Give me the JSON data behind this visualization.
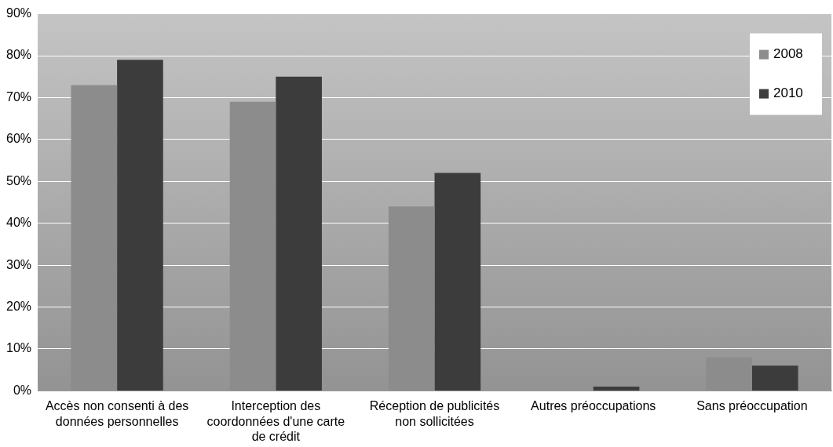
{
  "chart_data": {
    "type": "bar",
    "categories": [
      "Accès non consenti à des données personnelles",
      "Interception des coordonnées d'une carte de crédit",
      "Réception de publicités non sollicitées",
      "Autres préoccupations",
      "Sans préoccupation"
    ],
    "series": [
      {
        "name": "2008",
        "color": "#8c8c8c",
        "values": [
          73,
          69,
          44,
          0,
          8
        ]
      },
      {
        "name": "2010",
        "color": "#3c3c3c",
        "values": [
          79,
          75,
          52,
          1,
          6
        ]
      }
    ],
    "ylim": [
      0,
      90
    ],
    "yticks": [
      {
        "value": 0,
        "label": "0%"
      },
      {
        "value": 10,
        "label": "10%"
      },
      {
        "value": 20,
        "label": "20%"
      },
      {
        "value": 30,
        "label": "30%"
      },
      {
        "value": 40,
        "label": "40%"
      },
      {
        "value": 50,
        "label": "50%"
      },
      {
        "value": 60,
        "label": "60%"
      },
      {
        "value": 70,
        "label": "70%"
      },
      {
        "value": 80,
        "label": "80%"
      },
      {
        "value": 90,
        "label": "90%"
      }
    ],
    "grid": "y",
    "legend": "top right"
  }
}
